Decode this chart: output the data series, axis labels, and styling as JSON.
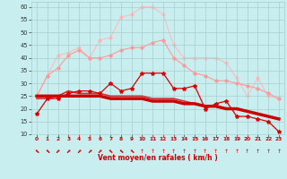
{
  "x": [
    0,
    1,
    2,
    3,
    4,
    5,
    6,
    7,
    8,
    9,
    10,
    11,
    12,
    13,
    14,
    15,
    16,
    17,
    18,
    19,
    20,
    21,
    22,
    23
  ],
  "line1_y": [
    18,
    24,
    24,
    26,
    27,
    27,
    26,
    30,
    27,
    28,
    34,
    34,
    34,
    28,
    28,
    29,
    20,
    22,
    23,
    17,
    17,
    16,
    15,
    11
  ],
  "line2_y": [
    25,
    25,
    25,
    25,
    25,
    25,
    25,
    24,
    24,
    24,
    24,
    23,
    23,
    23,
    22,
    22,
    21,
    21,
    20,
    20,
    19,
    18,
    17,
    16
  ],
  "line3_y": [
    24,
    24,
    25,
    27,
    26,
    26,
    26,
    25,
    25,
    25,
    25,
    24,
    24,
    24,
    23,
    22,
    21,
    21,
    20,
    20,
    19,
    18,
    17,
    16
  ],
  "line4_y": [
    25,
    33,
    36,
    41,
    43,
    40,
    40,
    41,
    43,
    44,
    44,
    46,
    47,
    40,
    37,
    34,
    33,
    31,
    31,
    30,
    29,
    28,
    26,
    24
  ],
  "line5_y": [
    25,
    33,
    41,
    42,
    44,
    40,
    47,
    48,
    56,
    57,
    60,
    60,
    57,
    45,
    40,
    40,
    40,
    40,
    38,
    32,
    25,
    32,
    25,
    24
  ],
  "bg_color": "#c8eef0",
  "grid_color": "#aacccc",
  "color_line1": "#dd0000",
  "color_line2": "#cc0000",
  "color_line3": "#cc3333",
  "color_line4": "#ff9999",
  "color_line5": "#ffbbbb",
  "xlabel": "Vent moyen/en rafales ( km/h )",
  "ylim": [
    10,
    62
  ],
  "xlim": [
    -0.5,
    23.5
  ],
  "yticks": [
    10,
    15,
    20,
    25,
    30,
    35,
    40,
    45,
    50,
    55,
    60
  ],
  "xticks": [
    0,
    1,
    2,
    3,
    4,
    5,
    6,
    7,
    8,
    9,
    10,
    11,
    12,
    13,
    14,
    15,
    16,
    17,
    18,
    19,
    20,
    21,
    22,
    23
  ],
  "tick_color_x": "#cc0000",
  "tick_color_y": "#333333",
  "xlabel_color": "#cc0000",
  "arrow_angles": [
    225,
    225,
    210,
    210,
    210,
    200,
    200,
    180,
    180,
    180,
    90,
    90,
    90,
    90,
    90,
    90,
    90,
    90,
    90,
    90,
    90,
    90,
    90,
    90
  ]
}
